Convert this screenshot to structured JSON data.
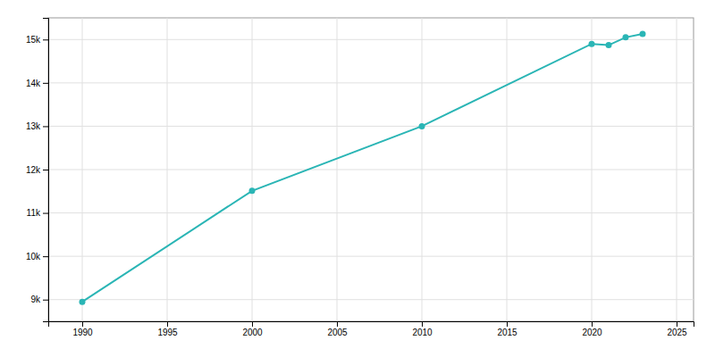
{
  "chart_data": {
    "type": "line",
    "x": [
      1990,
      2000,
      2010,
      2020,
      2021,
      2022,
      2023
    ],
    "values": [
      8950,
      11510,
      13000,
      14900,
      14870,
      15050,
      15130
    ],
    "color": "#2ab5b5",
    "marker": "circle",
    "xlim": [
      1988,
      2026
    ],
    "ylim": [
      8500,
      15500
    ],
    "xticks": [
      1990,
      1995,
      2000,
      2005,
      2010,
      2015,
      2020,
      2025
    ],
    "yticks": [
      {
        "value": 9000,
        "label": "9k"
      },
      {
        "value": 10000,
        "label": "10k"
      },
      {
        "value": 11000,
        "label": "11k"
      },
      {
        "value": 12000,
        "label": "12k"
      },
      {
        "value": 13000,
        "label": "13k"
      },
      {
        "value": 14000,
        "label": "14k"
      },
      {
        "value": 15000,
        "label": "15k"
      }
    ],
    "grid": true
  }
}
